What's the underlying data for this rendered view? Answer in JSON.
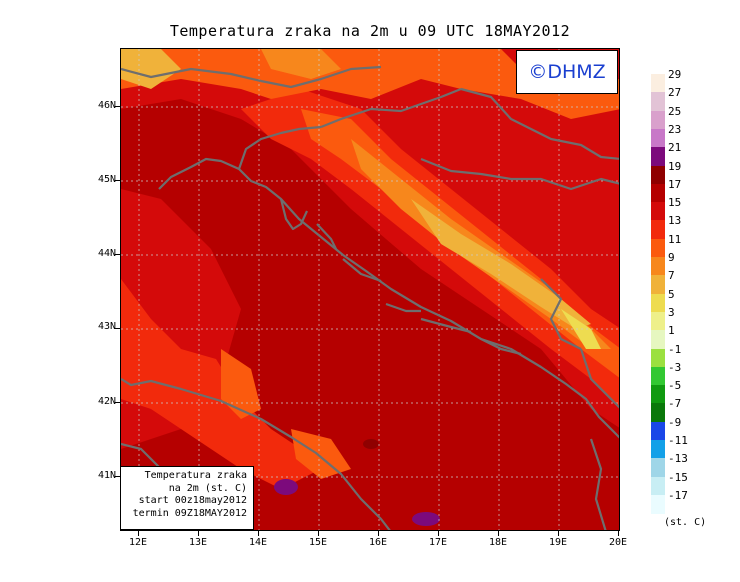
{
  "title": "Temperatura zraka na 2m u 09 UTC 18MAY2012",
  "copyright": "©DHMZ",
  "infobox": {
    "line1": "Temperatura zraka",
    "line2": "na 2m (st. C)",
    "line3": "start 00z18may2012",
    "line4": "termin 09Z18MAY2012"
  },
  "lat_labels": [
    "46N",
    "45N",
    "44N",
    "43N",
    "42N",
    "41N"
  ],
  "lon_labels": [
    "12E",
    "13E",
    "14E",
    "15E",
    "16E",
    "17E",
    "18E",
    "19E",
    "20E"
  ],
  "colorbar": {
    "levels": [
      "29",
      "27",
      "25",
      "23",
      "21",
      "19",
      "17",
      "15",
      "13",
      "11",
      "9",
      "7",
      "5",
      "3",
      "1",
      "-1",
      "-3",
      "-5",
      "-7",
      "-9",
      "-11",
      "-13",
      "-15",
      "-17"
    ],
    "colors": [
      "#fbeee0",
      "#e2c3d6",
      "#d9a0cc",
      "#c878c8",
      "#7c0a7c",
      "#8f0000",
      "#b50000",
      "#d40a0a",
      "#f22a0c",
      "#fb5a0e",
      "#f7871c",
      "#f0b23a",
      "#eedc50",
      "#eef08a",
      "#e6f7c0",
      "#9be040",
      "#32c832",
      "#109a10",
      "#0a780a",
      "#1a47e8",
      "#12a0e8",
      "#9fd6e8",
      "#c8eef4",
      "#eafcff"
    ],
    "unit": "(st. C)"
  },
  "colors_map": {
    "coast": "#6e6e6e",
    "grid": "#cccccc"
  }
}
